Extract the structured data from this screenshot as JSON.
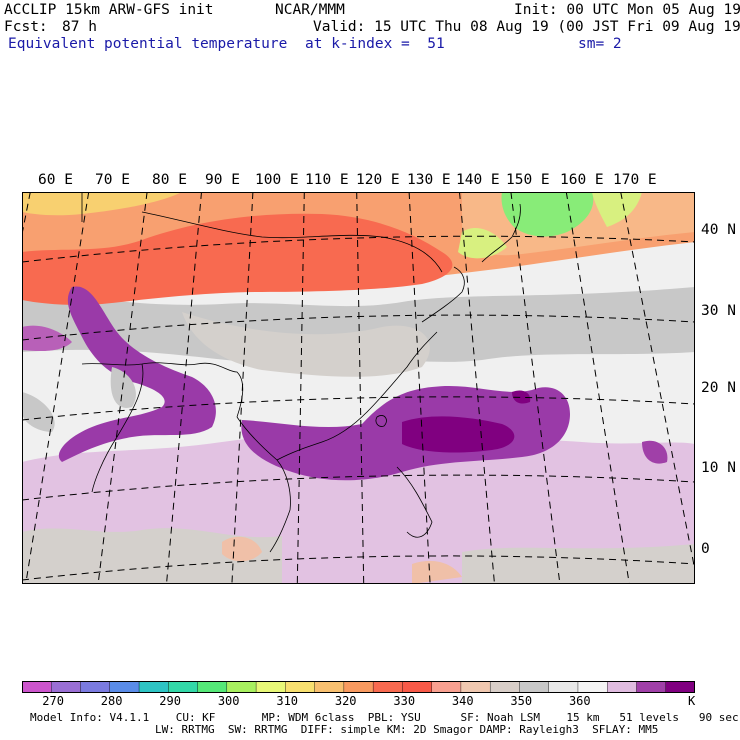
{
  "header": {
    "model": "ACCLIP 15km ARW-GFS init",
    "org": "NCAR/MMM",
    "init": "Init: 00 UTC Mon 05 Aug 19",
    "fcst_label": "Fcst:",
    "fcst_value": "87 h",
    "valid": "Valid: 15 UTC Thu 08 Aug 19 (00 JST Fri 09 Aug 19)",
    "field": "Equivalent potential temperature",
    "level": "at k-index =  51",
    "smooth": "sm= 2"
  },
  "map": {
    "lon_labels": [
      "60 E",
      "70 E",
      "80 E",
      "90 E",
      "100 E",
      "110 E",
      "120 E",
      "130 E",
      "140 E",
      "150 E",
      "160 E",
      "170 E"
    ],
    "lat_labels": [
      "40 N",
      "30 N",
      "20 N",
      "10 N",
      "0"
    ]
  },
  "colorbar": {
    "colors": [
      "#cc55cc",
      "#9a6fd4",
      "#7b7be0",
      "#5a8ce8",
      "#2ec4c4",
      "#33d8a8",
      "#55e878",
      "#a8f060",
      "#e8f878",
      "#f8e070",
      "#f8c070",
      "#f89a60",
      "#f86a50",
      "#f85a48",
      "#f8a090",
      "#f0c8b0",
      "#d8cec8",
      "#c8c8c8",
      "#e8e8e8",
      "#f4f4f4",
      "#e0bce0",
      "#a040a8",
      "#800080"
    ],
    "ticks": [
      "270",
      "280",
      "290",
      "300",
      "310",
      "320",
      "330",
      "340",
      "350",
      "360"
    ],
    "unit": "K"
  },
  "footer": {
    "line1": "Model Info: V4.1.1    CU: KF       MP: WDM 6class  PBL: YSU      SF: Noah LSM    15 km   51 levels   90 sec",
    "line2": "LW: RRTMG  SW: RRTMG  DIFF: simple KM: 2D Smagor DAMP: Rayleigh3  SFLAY: MM5"
  }
}
